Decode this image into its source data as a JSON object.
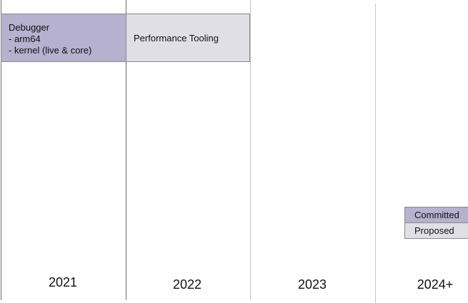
{
  "columns": [
    {
      "year": "2021"
    },
    {
      "year": "2022"
    },
    {
      "year": "2023"
    },
    {
      "year": "2024+"
    }
  ],
  "cards": {
    "debugger": {
      "lines": [
        "Debugger",
        "- arm64",
        "- kernel (live & core)"
      ],
      "status": "committed"
    },
    "performance": {
      "lines": [
        "Performance Tooling"
      ],
      "status": "proposed"
    }
  },
  "legend": {
    "committed": "Committed",
    "proposed": "Proposed"
  },
  "colors": {
    "committed": "#b6b1cf",
    "proposed": "#e0dfe6",
    "divider": "#6f6f6f",
    "divider_light": "#c4c4c4"
  }
}
